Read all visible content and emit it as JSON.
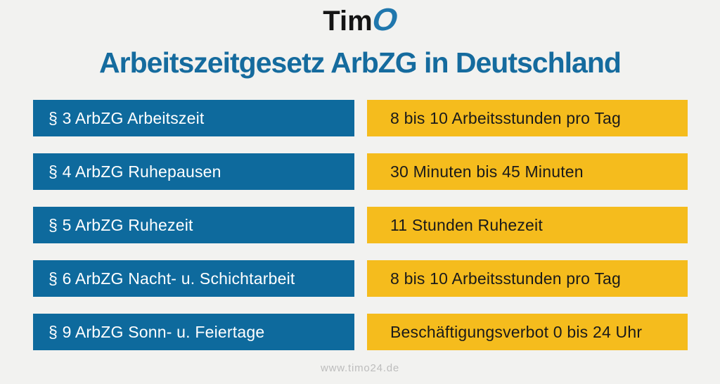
{
  "logo": {
    "text_black": "Tim",
    "text_blue": "O"
  },
  "title": "Arbeitszeitgesetz ArbZG in Deutschland",
  "rows": [
    {
      "law": "§ 3 ArbZG Arbeitszeit",
      "rule": "8 bis 10 Arbeitsstunden pro Tag"
    },
    {
      "law": "§ 4 ArbZG Ruhepausen",
      "rule": "30 Minuten bis 45 Minuten"
    },
    {
      "law": "§ 5 ArbZG Ruhezeit",
      "rule": "11 Stunden Ruhezeit"
    },
    {
      "law": "§ 6 ArbZG Nacht- u. Schichtarbeit",
      "rule": "8 bis 10 Arbeitsstunden pro Tag"
    },
    {
      "law": "§ 9 ArbZG Sonn- u. Feiertage",
      "rule": "Beschäftigungsverbot 0 bis 24 Uhr"
    }
  ],
  "footer": {
    "url": "www.timo24.de"
  },
  "colors": {
    "background": "#f2f2f0",
    "title": "#156b9e",
    "law_box": "#0e6a9d",
    "law_text": "#ffffff",
    "rule_box": "#f5bc1d",
    "rule_text": "#1a1a1a",
    "logo_black": "#141414",
    "logo_o": "#2077ad",
    "footer_text": "#bdbdbd"
  }
}
